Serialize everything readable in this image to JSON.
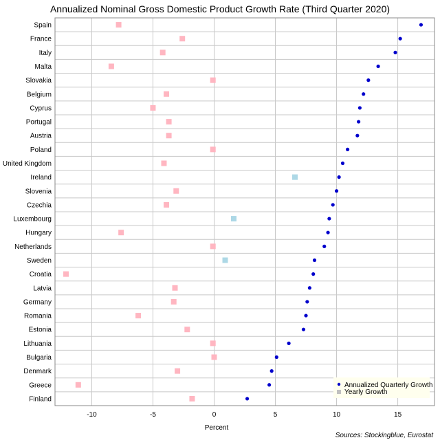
{
  "chart_data": {
    "type": "scatter",
    "title": "Annualized Nominal Gross Domestic Product Growth Rate (Third Quarter 2020)",
    "xlabel": "Percent",
    "ylabel": "",
    "xlim": [
      -13,
      18
    ],
    "xticks": [
      -10,
      -5,
      0,
      5,
      10,
      15
    ],
    "grid": true,
    "legend_position": "bottom-right",
    "source": "Sources: Stockingblue, Eurostat",
    "categories": [
      "Spain",
      "France",
      "Italy",
      "Malta",
      "Slovakia",
      "Belgium",
      "Cyprus",
      "Portugal",
      "Austria",
      "Poland",
      "United Kingdom",
      "Ireland",
      "Slovenia",
      "Czechia",
      "Luxembourg",
      "Hungary",
      "Netherlands",
      "Sweden",
      "Croatia",
      "Latvia",
      "Germany",
      "Romania",
      "Estonia",
      "Lithuania",
      "Bulgaria",
      "Denmark",
      "Greece",
      "Finland"
    ],
    "series": [
      {
        "name": "Annualized Quarterly Growth",
        "marker": "circle",
        "color": "#0000cc",
        "values": [
          16.9,
          15.2,
          14.8,
          13.4,
          12.6,
          12.2,
          11.9,
          11.8,
          11.7,
          10.9,
          10.5,
          10.2,
          10.0,
          9.7,
          9.4,
          9.3,
          9.0,
          8.2,
          8.1,
          7.8,
          7.6,
          7.5,
          7.3,
          6.1,
          5.1,
          4.7,
          4.5,
          2.7
        ]
      },
      {
        "name": "Yearly Growth",
        "marker": "square",
        "positive_color": "#add8e6",
        "negative_color": "#ffb6c1",
        "values": [
          -7.8,
          -2.6,
          -4.2,
          -8.4,
          -0.1,
          -3.9,
          -5.0,
          -3.7,
          -3.7,
          -0.1,
          -4.1,
          6.6,
          -3.1,
          -3.9,
          1.6,
          -7.6,
          -0.1,
          0.9,
          -12.1,
          -3.2,
          -3.3,
          -6.2,
          -2.2,
          -0.1,
          0.0,
          -3.0,
          -11.1,
          -1.8
        ]
      }
    ]
  }
}
